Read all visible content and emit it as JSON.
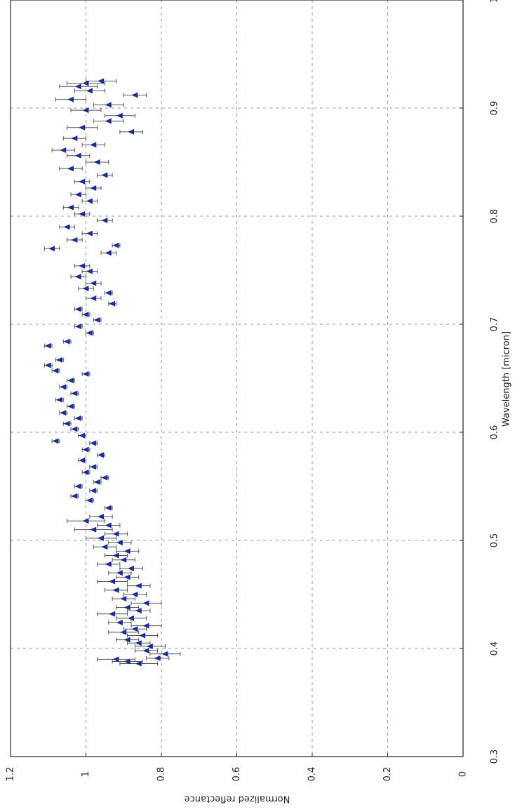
{
  "chart_data": {
    "type": "scatter",
    "xlabel": "Wavelength [micron]",
    "ylabel": "Normalized reflectance",
    "xlim": [
      0.3,
      1.0
    ],
    "xticks": [
      0.3,
      0.4,
      0.5,
      0.6,
      0.7,
      0.8,
      0.9,
      1
    ],
    "ylim": [
      0,
      1.2
    ],
    "yticks": [
      0,
      0.2,
      0.4,
      0.6,
      0.8,
      1,
      1.2
    ],
    "grid": true,
    "color": "#1c2a9c",
    "x": [
      0.386,
      0.388,
      0.39,
      0.391,
      0.395,
      0.398,
      0.402,
      0.405,
      0.408,
      0.412,
      0.415,
      0.418,
      0.421,
      0.424,
      0.428,
      0.432,
      0.435,
      0.438,
      0.442,
      0.446,
      0.45,
      0.454,
      0.458,
      0.462,
      0.466,
      0.47,
      0.474,
      0.478,
      0.482,
      0.486,
      0.49,
      0.494,
      0.498,
      0.502,
      0.506,
      0.51,
      0.514,
      0.518,
      0.522,
      0.53,
      0.537,
      0.541,
      0.546,
      0.55,
      0.554,
      0.558,
      0.563,
      0.568,
      0.574,
      0.579,
      0.584,
      0.59,
      0.592,
      0.597,
      0.603,
      0.608,
      0.613,
      0.618,
      0.624,
      0.63,
      0.636,
      0.642,
      0.648,
      0.654,
      0.657,
      0.662,
      0.667,
      0.68,
      0.684,
      0.692,
      0.698,
      0.704,
      0.709,
      0.714,
      0.719,
      0.724,
      0.729,
      0.733,
      0.738,
      0.744,
      0.749,
      0.754,
      0.766,
      0.77,
      0.773,
      0.778,
      0.784,
      0.79,
      0.796,
      0.802,
      0.808,
      0.814,
      0.82,
      0.826,
      0.832,
      0.838,
      0.844,
      0.85,
      0.856,
      0.861,
      0.866,
      0.872,
      0.878,
      0.882,
      0.888,
      0.893,
      0.898,
      0.903,
      0.908,
      0.912,
      0.916,
      0.92,
      0.923,
      0.925
    ],
    "values": [
      0.86,
      0.89,
      0.92,
      0.81,
      0.79,
      0.84,
      0.83,
      0.86,
      0.89,
      0.85,
      0.9,
      0.87,
      0.84,
      0.91,
      0.88,
      0.93,
      0.86,
      0.89,
      0.84,
      0.9,
      0.87,
      0.92,
      0.86,
      0.93,
      0.89,
      0.91,
      0.88,
      0.94,
      0.9,
      0.92,
      0.89,
      0.95,
      0.91,
      0.96,
      0.92,
      0.98,
      0.94,
      1.0,
      0.96,
      0.94,
      0.99,
      1.03,
      0.98,
      1.02,
      0.97,
      0.95,
      1.0,
      0.98,
      1.01,
      0.96,
      1.0,
      0.98,
      1.08,
      1.01,
      1.03,
      1.05,
      1.02,
      1.06,
      1.04,
      1.07,
      1.03,
      1.06,
      1.04,
      1.0,
      1.08,
      1.1,
      1.07,
      1.1,
      1.05,
      0.99,
      1.02,
      0.97,
      1.0,
      1.02,
      0.93,
      0.98,
      0.94,
      1.0,
      0.98,
      1.02,
      0.99,
      1.01,
      0.94,
      1.09,
      0.92,
      1.03,
      0.99,
      1.05,
      0.95,
      1.01,
      1.04,
      0.99,
      1.02,
      0.98,
      1.01,
      0.95,
      1.04,
      0.97,
      1.02,
      1.06,
      0.98,
      1.03,
      0.88,
      1.01,
      0.94,
      0.91,
      1.0,
      0.94,
      1.04,
      0.87,
      0.99,
      1.02,
      1.0,
      0.96
    ],
    "errors": [
      0.05,
      0.04,
      0.05,
      0.03,
      0.04,
      0.03,
      0.04,
      0.03,
      0.03,
      0.04,
      0.04,
      0.03,
      0.04,
      0.03,
      0.04,
      0.04,
      0.03,
      0.03,
      0.04,
      0.03,
      0.03,
      0.03,
      0.03,
      0.04,
      0.03,
      0.03,
      0.03,
      0.03,
      0.03,
      0.03,
      0.03,
      0.03,
      0.03,
      0.04,
      0.03,
      0.05,
      0.03,
      0.05,
      0.03,
      0.01,
      0.01,
      0.01,
      0.01,
      0.01,
      0.01,
      0.01,
      0.01,
      0.01,
      0.01,
      0.01,
      0.01,
      0.01,
      0.01,
      0.01,
      0.01,
      0.01,
      0.01,
      0.01,
      0.01,
      0.01,
      0.01,
      0.01,
      0.01,
      0.01,
      0.01,
      0.01,
      0.01,
      0.01,
      0.01,
      0.01,
      0.01,
      0.01,
      0.01,
      0.01,
      0.01,
      0.02,
      0.01,
      0.02,
      0.02,
      0.02,
      0.02,
      0.02,
      0.02,
      0.02,
      0.01,
      0.02,
      0.02,
      0.02,
      0.02,
      0.02,
      0.02,
      0.02,
      0.02,
      0.02,
      0.02,
      0.02,
      0.03,
      0.03,
      0.03,
      0.03,
      0.03,
      0.03,
      0.03,
      0.04,
      0.04,
      0.04,
      0.04,
      0.04,
      0.04,
      0.03,
      0.04,
      0.05,
      0.05,
      0.04
    ]
  }
}
